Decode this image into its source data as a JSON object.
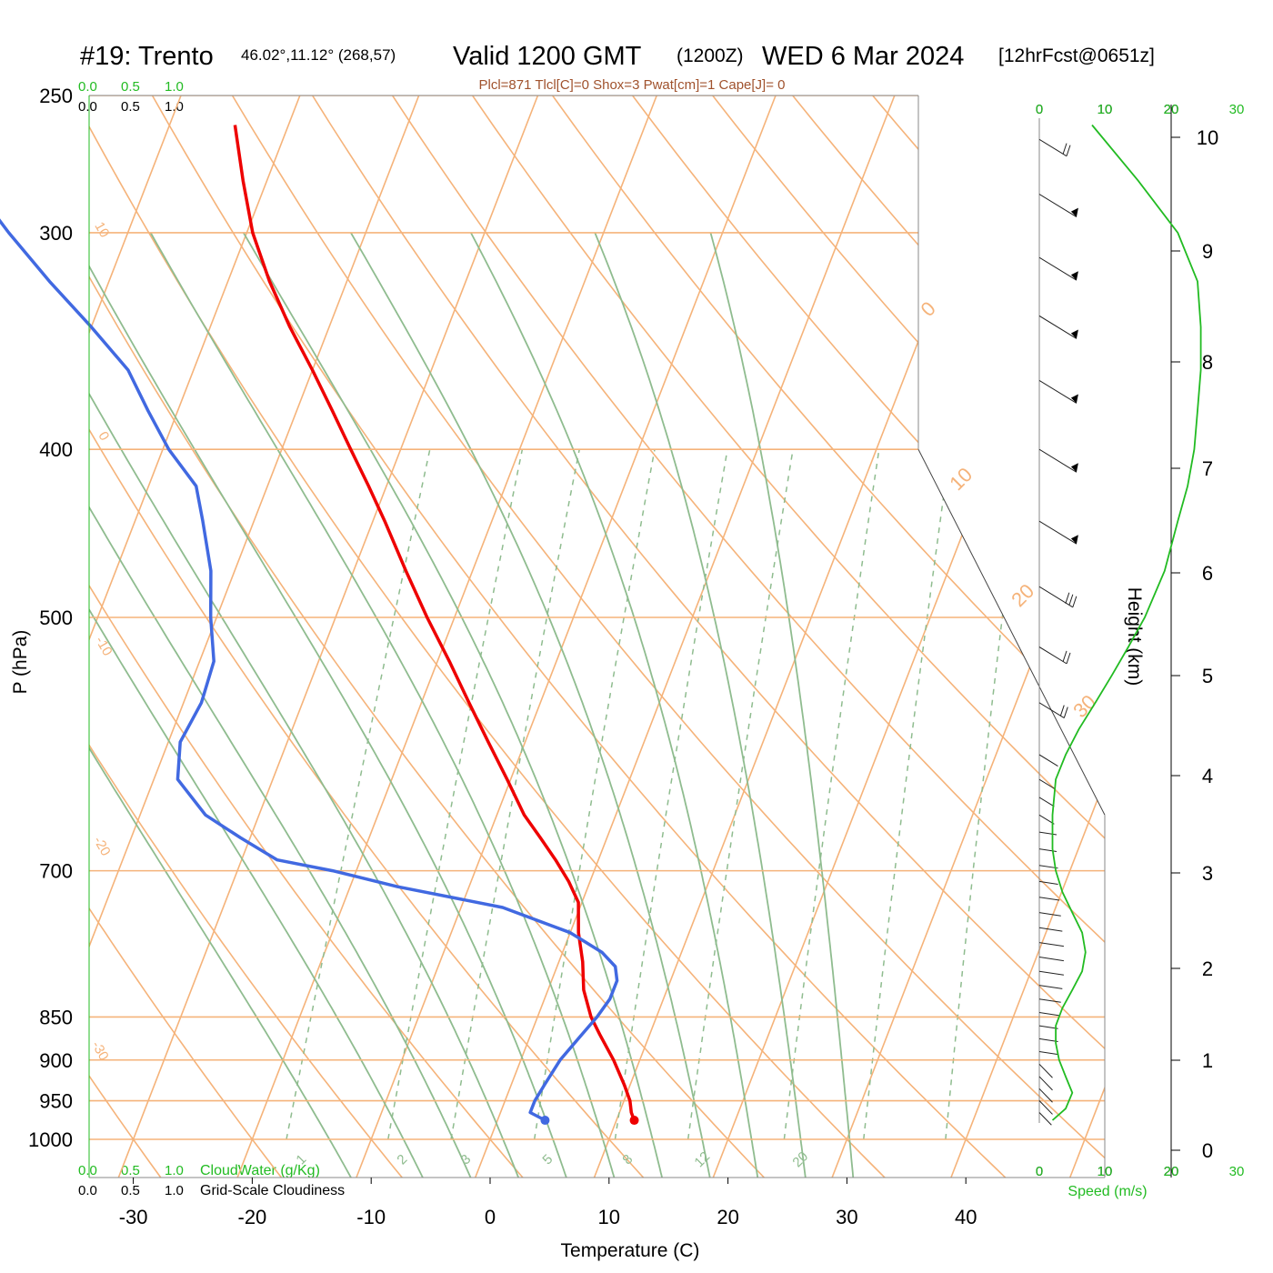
{
  "header": {
    "station": "#19: Trento",
    "coords": "46.02°,11.12° (268,57)",
    "valid": "Valid 1200 GMT",
    "zulu": "(1200Z)",
    "date": "WED 6 Mar 2024",
    "forecast": "[12hrFcst@0651z]",
    "indices": "Plcl=871 Tlcl[C]=0 Shox=3 Pwat[cm]=1 Cape[J]= 0"
  },
  "cloud_scale": {
    "top_green": [
      "0.0",
      "0.5",
      "1.0"
    ],
    "top_black": [
      "0.0",
      "0.5",
      "1.0"
    ],
    "bottom_green": [
      "0.0",
      "0.5",
      "1.0"
    ],
    "bottom_black": [
      "0.0",
      "0.5",
      "1.0"
    ],
    "cloudwater_label": "CloudWater (g/Kg)",
    "cloudiness_label": "Grid-Scale Cloudiness"
  },
  "speed_scale": {
    "top_black": [
      "0",
      "10",
      "20"
    ],
    "top_green": [
      "0",
      "10",
      "20",
      "30"
    ],
    "bottom_black": [
      "0",
      "10",
      "20"
    ],
    "bottom_green": [
      "0",
      "10",
      "20",
      "30"
    ],
    "label": "Speed (m/s)"
  },
  "mixing_ratio_labels": [
    "1",
    "2",
    "3",
    "5",
    "8",
    "12",
    "20"
  ],
  "isotherm_labels": [
    "0",
    "10",
    "20",
    "30"
  ],
  "left_isotherm_labels": [
    "10",
    "0",
    "-10",
    "-20",
    "-30"
  ],
  "colors": {
    "temperature": "#ee0000",
    "dewpoint": "#4169e1",
    "isobar_isotherm": "#f5b37a",
    "adiabat": "#8fbc8f",
    "speed": "#22bb22",
    "cloud_axis": "#22bb22"
  },
  "chart_data": {
    "type": "line",
    "title": "Valid 1200 GMT WED 6 Mar 2024",
    "xlabel": "Temperature (C)",
    "ylabel": "P (hPa)",
    "xlim": [
      -30,
      40
    ],
    "ylim": [
      1000,
      250
    ],
    "x_ticks": [
      "-30",
      "-20",
      "-10",
      "0",
      "10",
      "20",
      "30",
      "40"
    ],
    "pressure_ticks": [
      "250",
      "300",
      "400",
      "500",
      "700",
      "850",
      "900",
      "950",
      "1000"
    ],
    "pressure_tick_values": [
      250,
      300,
      400,
      500,
      700,
      850,
      900,
      950,
      1000
    ],
    "height_axis": {
      "label": "Height (km)",
      "ticks": [
        "0",
        "1",
        "2",
        "3",
        "4",
        "5",
        "6",
        "7",
        "8",
        "9",
        "10"
      ]
    },
    "series": [
      {
        "name": "Temperature",
        "pressure": [
          975,
          965,
          950,
          930,
          900,
          870,
          850,
          820,
          790,
          760,
          730,
          710,
          690,
          670,
          650,
          620,
          590,
          560,
          530,
          500,
          470,
          440,
          420,
          400,
          380,
          360,
          340,
          320,
          300,
          280,
          260
        ],
        "temp": [
          11.5,
          11.0,
          10.5,
          9.5,
          7.8,
          5.8,
          4.5,
          3.0,
          2.0,
          0.7,
          -0.3,
          -1.8,
          -3.6,
          -5.6,
          -7.7,
          -10.3,
          -13.1,
          -16.0,
          -19.0,
          -22.3,
          -25.6,
          -29.0,
          -31.5,
          -34.2,
          -37.0,
          -40.0,
          -43.3,
          -46.5,
          -49.5,
          -52.0,
          -54.5
        ]
      },
      {
        "name": "Dewpoint",
        "pressure": [
          975,
          965,
          950,
          930,
          900,
          870,
          850,
          830,
          810,
          795,
          780,
          760,
          735,
          715,
          700,
          690,
          670,
          650,
          620,
          590,
          560,
          530,
          500,
          470,
          440,
          420,
          400,
          380,
          360,
          340,
          320,
          300,
          280,
          260
        ],
        "temp": [
          4.0,
          2.5,
          2.5,
          2.8,
          3.3,
          4.3,
          5.0,
          5.5,
          5.5,
          4.9,
          3.3,
          0.0,
          -6.5,
          -16.0,
          -22.0,
          -27.0,
          -30.8,
          -34.5,
          -38.0,
          -39.0,
          -38.5,
          -38.8,
          -40.5,
          -42.0,
          -44.3,
          -46.0,
          -49.5,
          -52.5,
          -55.5,
          -60.0,
          -65.0,
          -70.0,
          -75.0,
          -80.0
        ]
      },
      {
        "name": "Speed (m/s)",
        "pressure": [
          975,
          960,
          940,
          920,
          900,
          880,
          860,
          840,
          820,
          800,
          780,
          760,
          740,
          720,
          700,
          680,
          650,
          620,
          600,
          580,
          560,
          540,
          520,
          500,
          470,
          440,
          420,
          400,
          380,
          360,
          340,
          320,
          300,
          280,
          260
        ],
        "speed": [
          2,
          4,
          5,
          4,
          3,
          2.5,
          2.5,
          3.5,
          5,
          6.5,
          7,
          6.5,
          5,
          3.5,
          2.5,
          2,
          2,
          2.5,
          4,
          6,
          8.5,
          11,
          13.5,
          16,
          19,
          21,
          22.5,
          23.5,
          24,
          24.5,
          24.5,
          24,
          21,
          15,
          8
        ]
      }
    ],
    "wind_barbs": {
      "pressure": [
        965,
        950,
        935,
        920,
        905,
        890,
        875,
        860,
        845,
        830,
        815,
        800,
        785,
        770,
        755,
        740,
        725,
        710,
        695,
        680,
        665,
        650,
        635,
        620,
        600,
        560,
        520,
        480,
        440,
        400,
        365,
        335,
        310,
        285,
        265
      ],
      "speed": [
        2,
        3,
        3,
        3,
        3,
        3,
        3,
        3,
        4,
        5,
        6,
        7,
        7,
        7,
        6,
        5,
        4,
        3,
        3,
        2,
        2,
        2,
        2,
        3,
        5,
        10,
        12,
        17,
        20,
        22,
        25,
        25,
        24,
        20,
        12
      ]
    }
  }
}
